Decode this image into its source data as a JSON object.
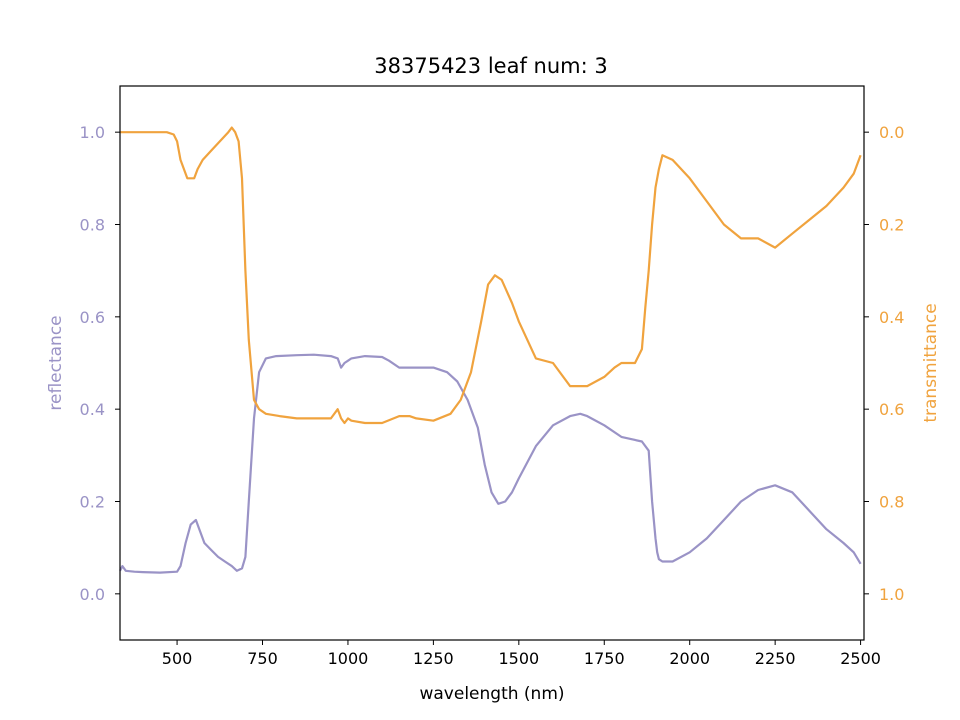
{
  "chart_data": {
    "type": "line",
    "title": "38375423 leaf num: 3",
    "xlabel": "wavelength (nm)",
    "ylabel_left": "reflectance",
    "ylabel_right": "transmittance",
    "xlim": [
      333,
      2510
    ],
    "ylim_left": [
      -0.1,
      1.1
    ],
    "ylim_right": [
      1.1,
      -0.1
    ],
    "right_axis_inverted": true,
    "grid": false,
    "xticks": [
      500,
      750,
      1000,
      1250,
      1500,
      1750,
      2000,
      2250,
      2500
    ],
    "xtick_labels": [
      "500",
      "750",
      "1000",
      "1250",
      "1500",
      "1750",
      "2000",
      "2250",
      "2500"
    ],
    "yticks_left": [
      0.0,
      0.2,
      0.4,
      0.6,
      0.8,
      1.0
    ],
    "ytick_labels_left": [
      "0.0",
      "0.2",
      "0.4",
      "0.6",
      "0.8",
      "1.0"
    ],
    "yticks_right": [
      0.0,
      0.2,
      0.4,
      0.6,
      0.8,
      1.0
    ],
    "ytick_labels_right": [
      "0.0",
      "0.2",
      "0.4",
      "0.6",
      "0.8",
      "1.0"
    ],
    "colors": {
      "reflectance": "#9a93c6",
      "transmittance": "#f0a33e",
      "axes": "#000000"
    },
    "series": [
      {
        "key": "reflectance",
        "axis": "left",
        "x": [
          333,
          340,
          350,
          375,
          400,
          450,
          500,
          510,
          525,
          540,
          555,
          565,
          580,
          600,
          620,
          640,
          660,
          675,
          690,
          700,
          710,
          725,
          740,
          760,
          790,
          850,
          900,
          950,
          970,
          975,
          980,
          990,
          1000,
          1010,
          1050,
          1100,
          1120,
          1150,
          1200,
          1250,
          1290,
          1320,
          1350,
          1380,
          1400,
          1420,
          1440,
          1460,
          1480,
          1500,
          1550,
          1600,
          1650,
          1680,
          1700,
          1750,
          1800,
          1830,
          1860,
          1880,
          1890,
          1900,
          1905,
          1910,
          1920,
          1950,
          2000,
          2050,
          2100,
          2150,
          2200,
          2250,
          2300,
          2350,
          2400,
          2450,
          2480,
          2500
        ],
        "y": [
          0.05,
          0.06,
          0.05,
          0.048,
          0.047,
          0.046,
          0.048,
          0.06,
          0.11,
          0.15,
          0.16,
          0.14,
          0.11,
          0.095,
          0.08,
          0.07,
          0.06,
          0.05,
          0.055,
          0.08,
          0.2,
          0.38,
          0.48,
          0.51,
          0.515,
          0.517,
          0.518,
          0.515,
          0.51,
          0.5,
          0.49,
          0.5,
          0.505,
          0.51,
          0.515,
          0.513,
          0.505,
          0.49,
          0.49,
          0.49,
          0.48,
          0.46,
          0.42,
          0.36,
          0.28,
          0.22,
          0.195,
          0.2,
          0.22,
          0.25,
          0.32,
          0.365,
          0.385,
          0.39,
          0.385,
          0.365,
          0.34,
          0.335,
          0.33,
          0.31,
          0.2,
          0.12,
          0.09,
          0.075,
          0.07,
          0.07,
          0.09,
          0.12,
          0.16,
          0.2,
          0.225,
          0.235,
          0.22,
          0.18,
          0.14,
          0.11,
          0.09,
          0.065
        ],
        "name": ""
      },
      {
        "key": "transmittance",
        "axis": "right",
        "x": [
          333,
          340,
          350,
          375,
          400,
          450,
          470,
          490,
          500,
          510,
          530,
          550,
          560,
          575,
          600,
          625,
          650,
          660,
          670,
          680,
          690,
          700,
          710,
          725,
          740,
          760,
          800,
          850,
          900,
          950,
          970,
          975,
          980,
          990,
          1000,
          1010,
          1050,
          1100,
          1150,
          1180,
          1200,
          1250,
          1300,
          1330,
          1360,
          1390,
          1410,
          1430,
          1450,
          1480,
          1500,
          1550,
          1600,
          1650,
          1700,
          1750,
          1780,
          1800,
          1840,
          1860,
          1870,
          1880,
          1890,
          1900,
          1910,
          1920,
          1950,
          2000,
          2050,
          2100,
          2150,
          2200,
          2250,
          2300,
          2350,
          2400,
          2450,
          2480,
          2500
        ],
        "y": [
          0.0,
          0.0,
          0.0,
          0.0,
          0.0,
          0.0,
          0.0,
          0.005,
          0.02,
          0.06,
          0.1,
          0.1,
          0.08,
          0.06,
          0.04,
          0.02,
          0.0,
          -0.01,
          0.0,
          0.02,
          0.1,
          0.3,
          0.45,
          0.58,
          0.6,
          0.61,
          0.615,
          0.62,
          0.62,
          0.62,
          0.6,
          0.61,
          0.62,
          0.63,
          0.62,
          0.625,
          0.63,
          0.63,
          0.615,
          0.615,
          0.62,
          0.625,
          0.61,
          0.58,
          0.52,
          0.41,
          0.33,
          0.31,
          0.32,
          0.37,
          0.41,
          0.49,
          0.5,
          0.55,
          0.55,
          0.53,
          0.51,
          0.5,
          0.5,
          0.47,
          0.38,
          0.3,
          0.2,
          0.12,
          0.08,
          0.05,
          0.06,
          0.1,
          0.15,
          0.2,
          0.23,
          0.23,
          0.25,
          0.22,
          0.19,
          0.16,
          0.12,
          0.09,
          0.05
        ],
        "name": ""
      }
    ]
  }
}
